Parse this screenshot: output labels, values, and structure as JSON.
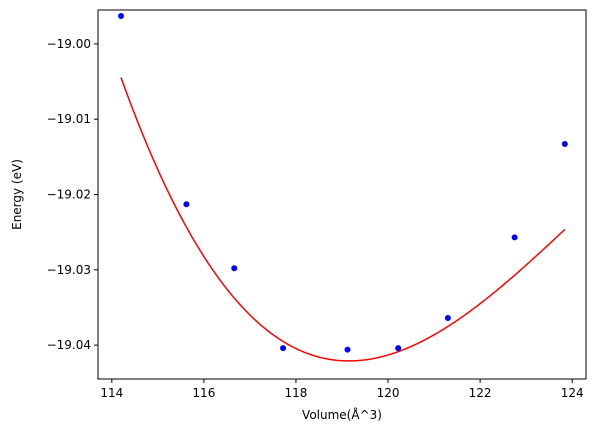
{
  "chart_data": {
    "type": "scatter",
    "title": "",
    "xlabel": "Volume(Å^3)",
    "ylabel": "Energy (eV)",
    "xlim": [
      113.7,
      124.3
    ],
    "ylim": [
      -19.0445,
      -18.9955
    ],
    "xticks": [
      114,
      116,
      118,
      120,
      122,
      124
    ],
    "xtick_labels": [
      "114",
      "116",
      "118",
      "120",
      "122",
      "124"
    ],
    "yticks": [
      -19.04,
      -19.03,
      -19.02,
      -19.01,
      -19.0
    ],
    "ytick_labels": [
      "−19.04",
      "−19.03",
      "−19.02",
      "−19.01",
      "−19.00"
    ],
    "grid": false,
    "series": [
      {
        "kind": "points",
        "color": "#0000ff",
        "x": [
          114.2,
          115.62,
          116.66,
          117.72,
          119.12,
          120.22,
          121.3,
          122.75,
          123.84
        ],
        "y": [
          -18.9963,
          -19.0213,
          -19.0298,
          -19.0404,
          -19.0406,
          -19.0404,
          -19.0364,
          -19.0257,
          -19.0133
        ]
      },
      {
        "kind": "fit-curve",
        "color": "#ff0000",
        "x_range": [
          114.2,
          123.84
        ],
        "fit_min": [
          119.15,
          -19.0421
        ],
        "curvature": 0.001155,
        "asymmetry": -7.7e-05
      }
    ]
  }
}
